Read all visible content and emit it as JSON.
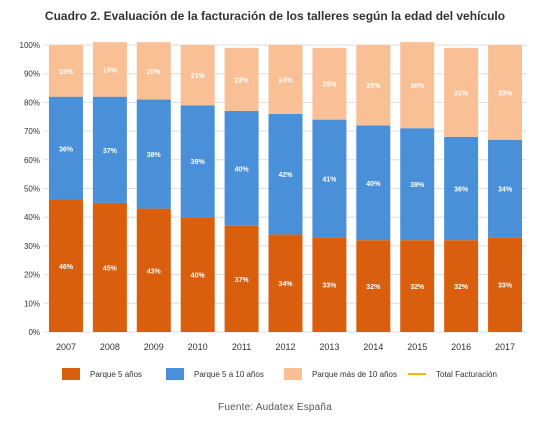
{
  "title": "Cuadro 2. Evaluación de la facturación de los talleres según la edad del vehículo",
  "colors": {
    "parque_5": "#D95F0E",
    "parque_5_10": "#4A90D9",
    "parque_mas_10": "#F9C095",
    "total": "#F5B800",
    "grid": "#DDDDDD",
    "axis_text": "#333333"
  },
  "chart_data": {
    "type": "bar",
    "stacked": true,
    "categories": [
      "2007",
      "2008",
      "2009",
      "2010",
      "2011",
      "2012",
      "2013",
      "2014",
      "2015",
      "2016",
      "2017"
    ],
    "series": [
      {
        "name": "Parque 5 años",
        "values": [
          46,
          45,
          43,
          40,
          37,
          34,
          33,
          32,
          32,
          32,
          33
        ]
      },
      {
        "name": "Parque 5 a 10 años",
        "values": [
          36,
          37,
          38,
          39,
          40,
          42,
          41,
          40,
          39,
          36,
          34
        ]
      },
      {
        "name": "Parque más de 10 años",
        "values": [
          18,
          19,
          20,
          21,
          22,
          24,
          25,
          28,
          30,
          31,
          33
        ]
      }
    ],
    "bar_totals": [
      100,
      100,
      100,
      100,
      99,
      100,
      99,
      100,
      100,
      99,
      100
    ],
    "y_ticks": [
      "0%",
      "10%",
      "20%",
      "30%",
      "40%",
      "50%",
      "60%",
      "70%",
      "80%",
      "90%",
      "100%"
    ],
    "ylim": [
      0,
      100
    ],
    "grid": true,
    "legend_position": "bottom"
  },
  "legend": [
    {
      "label": "Parque 5 años",
      "color_key": "parque_5",
      "kind": "box"
    },
    {
      "label": "Parque 5 a 10 años",
      "color_key": "parque_5_10",
      "kind": "box"
    },
    {
      "label": "Parque más de 10 años",
      "color_key": "parque_mas_10",
      "kind": "box"
    },
    {
      "label": "Total Facturación",
      "color_key": "total",
      "kind": "line"
    }
  ],
  "source": "Fuente: Audatex España"
}
